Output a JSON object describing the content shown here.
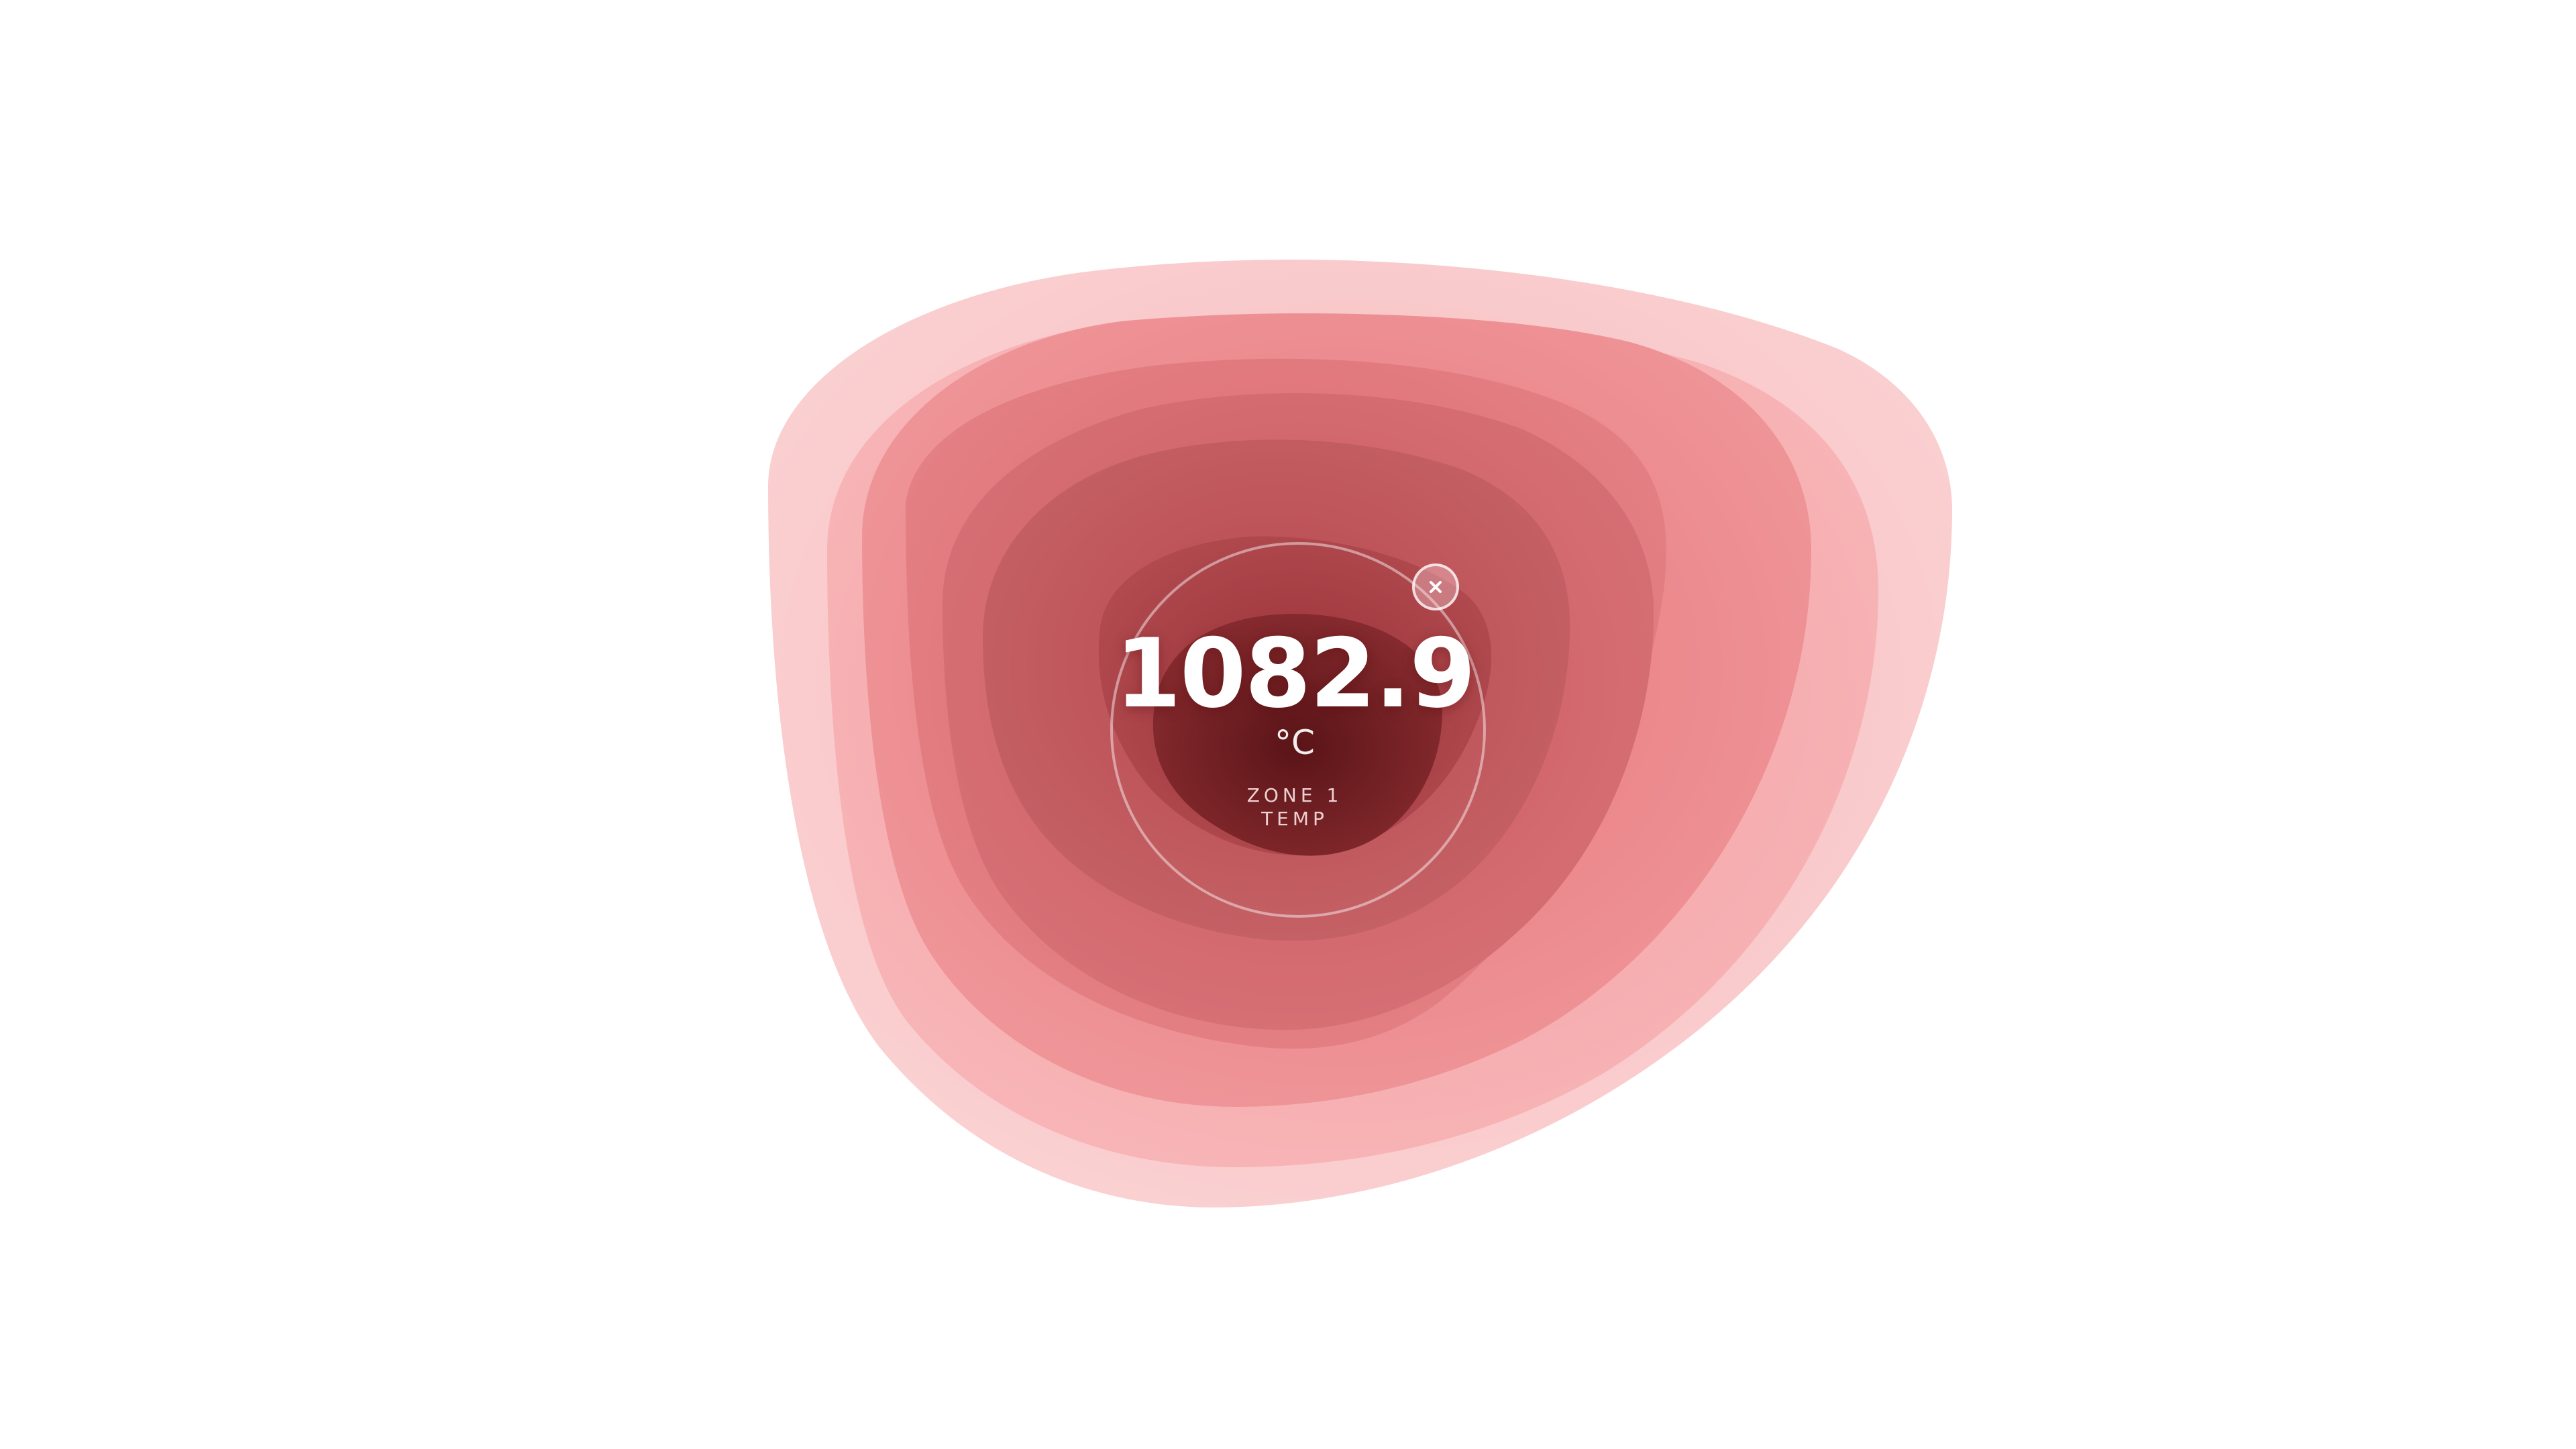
{
  "gauge": {
    "value": "1082.9",
    "unit": "°C",
    "label_line1": "ZONE 1",
    "label_line2": "TEMP"
  },
  "close_icon": "close-icon",
  "colors": {
    "background": "#ffffff",
    "outer_ring": "#f7c4c6",
    "inner_core": "#6b1a1e",
    "accent": "#d9666b"
  }
}
